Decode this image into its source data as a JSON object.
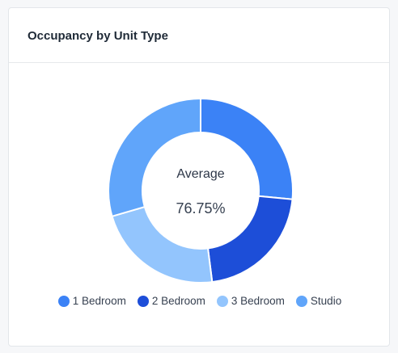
{
  "card": {
    "title": "Occupancy by Unit Type"
  },
  "chart_data": {
    "type": "pie",
    "variant": "donut",
    "categories": [
      "1 Bedroom",
      "2 Bedroom",
      "3 Bedroom",
      "Studio"
    ],
    "values": [
      26.5,
      21.5,
      22.5,
      29.5
    ],
    "colors": [
      "#3b82f6",
      "#1d4ed8",
      "#93c5fd",
      "#60a5fa"
    ],
    "center_label": "Average",
    "center_value": "76.75%",
    "legend_position": "bottom"
  }
}
